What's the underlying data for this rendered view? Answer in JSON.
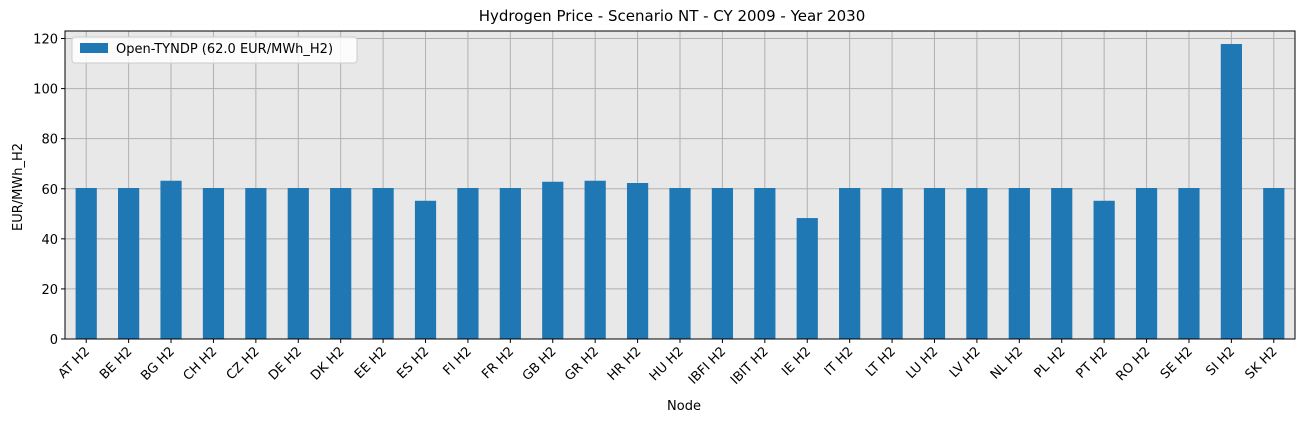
{
  "chart_data": {
    "type": "bar",
    "title": "Hydrogen Price - Scenario NT - CY 2009 - Year 2030",
    "xlabel": "Node",
    "ylabel": "EUR/MWh_H2",
    "ylim": [
      0,
      123
    ],
    "yticks": [
      0,
      20,
      40,
      60,
      80,
      100,
      120
    ],
    "grid": true,
    "legend_position": "top-left",
    "bar_color": "#1f77b4",
    "plot_background": "#e8e8e8",
    "categories": [
      "AT H2",
      "BE H2",
      "BG H2",
      "CH H2",
      "CZ H2",
      "DE H2",
      "DK H2",
      "EE H2",
      "ES H2",
      "FI H2",
      "FR H2",
      "GB H2",
      "GR H2",
      "HR H2",
      "HU H2",
      "IBFI H2",
      "IBIT H2",
      "IE H2",
      "IT H2",
      "LT H2",
      "LU H2",
      "LV H2",
      "NL H2",
      "PL H2",
      "PT H2",
      "RO H2",
      "SE H2",
      "SI H2",
      "SK H2"
    ],
    "series": [
      {
        "name": "Open-TYNDP (62.0 EUR/MWh_H2)",
        "values": [
          60.3,
          60.3,
          63.2,
          60.3,
          60.3,
          60.3,
          60.3,
          60.3,
          55.2,
          60.3,
          60.3,
          62.8,
          63.2,
          62.3,
          60.3,
          60.3,
          60.3,
          48.3,
          60.3,
          60.3,
          60.3,
          60.3,
          60.3,
          60.3,
          55.2,
          60.3,
          60.3,
          117.8,
          60.3
        ]
      }
    ]
  }
}
